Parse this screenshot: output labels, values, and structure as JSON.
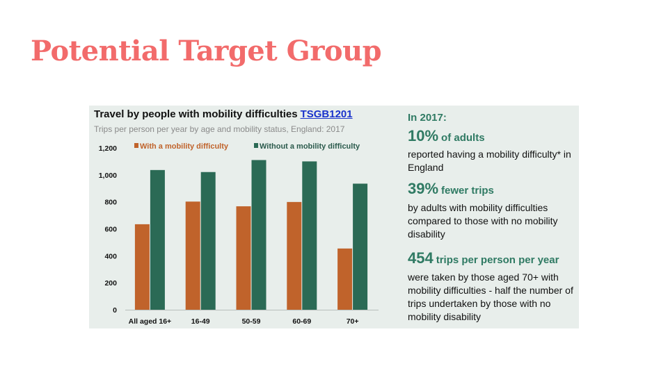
{
  "slide": {
    "title": "Potential Target Group"
  },
  "chart_panel": {
    "title": "Travel by people with mobility difficulties",
    "title_link": "TSGB1201",
    "subtitle": "Trips per person per year by age and mobility status, England: 2017"
  },
  "chart_data": {
    "type": "bar",
    "categories": [
      "All aged 16+",
      "16-49",
      "50-59",
      "60-69",
      "70+"
    ],
    "series": [
      {
        "name": "With a mobility difficulty",
        "color": "#c0632b",
        "values": [
          634,
          802,
          767,
          799,
          454
        ]
      },
      {
        "name": "Without a mobility difficulty",
        "color": "#2b6a55",
        "values": [
          1036,
          1021,
          1110,
          1100,
          935
        ]
      }
    ],
    "yticks": [
      "0",
      "200",
      "400",
      "600",
      "800",
      "1,000",
      "1,200"
    ],
    "ylim": [
      0,
      1200
    ],
    "grid": false,
    "legend_position": "top",
    "title": "Travel by people with mobility difficulties",
    "xlabel": "",
    "ylabel": ""
  },
  "stats": {
    "intro": "In 2017:",
    "items": [
      {
        "value": "10%",
        "label": "of adults",
        "text": "reported having a mobility difficulty* in England"
      },
      {
        "value": "39%",
        "label": "fewer trips",
        "text": "by adults with mobility difficulties compared to those with no mobility disability"
      },
      {
        "value": "454",
        "label": "trips per person per year",
        "text": "were taken by those aged 70+ with mobility difficulties - half the number of trips undertaken by those with no mobility disability"
      }
    ]
  }
}
